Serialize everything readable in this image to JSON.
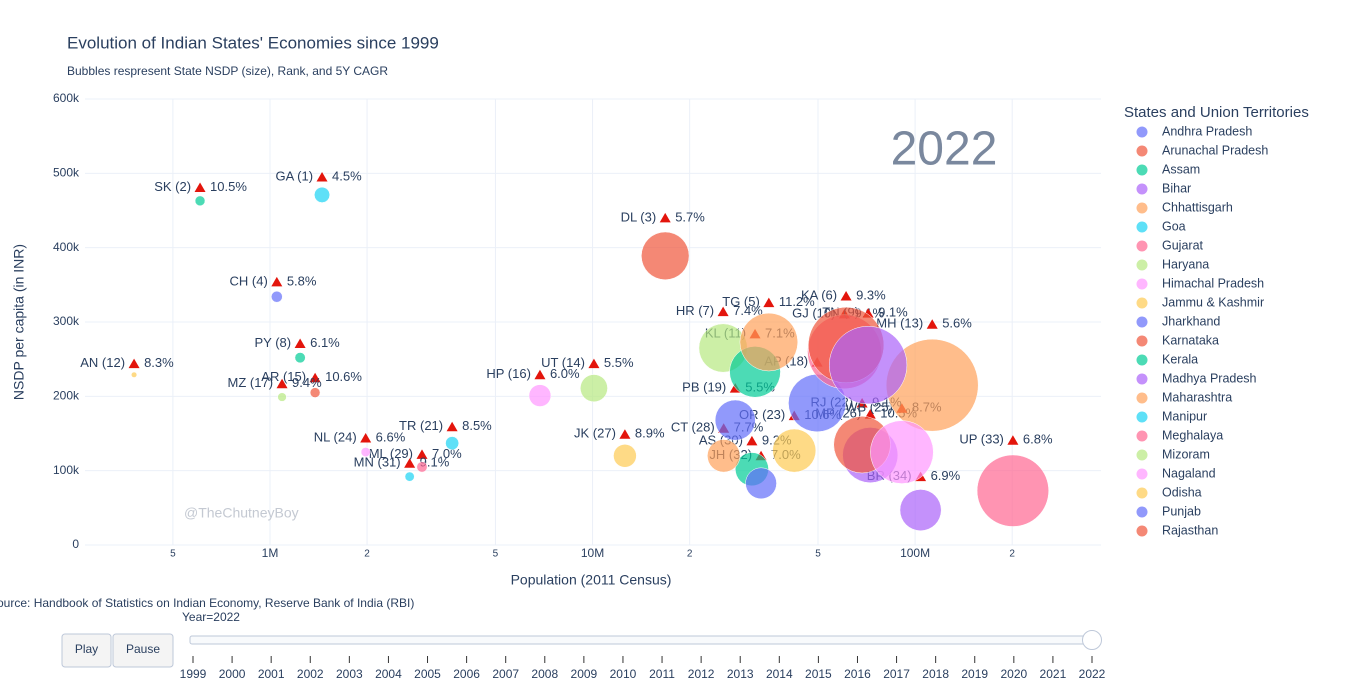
{
  "chart_data": {
    "type": "bubble",
    "title": "Evolution of Indian States' Economies since 1999",
    "subtitle": "Bubbles respresent State NSDP (size), Rank, and 5Y CAGR",
    "x_label": "Population (2011 Census)",
    "y_label": "NSDP per capita (in INR)",
    "legend_title": "States and Union Territories",
    "watermark": "@TheChutneyBoy",
    "source": "Source: Handbook of Statistics on Indian Economy, Reserve Bank of India (RBI)",
    "xscale": "log",
    "grid": true,
    "xlim": [
      267000,
      377000000
    ],
    "ylim": [
      0,
      600000
    ],
    "xticks": [
      {
        "value": 500000,
        "label": "5"
      },
      {
        "value": 1000000,
        "label": "1M"
      },
      {
        "value": 2000000,
        "label": "2"
      },
      {
        "value": 5000000,
        "label": "5"
      },
      {
        "value": 10000000,
        "label": "10M"
      },
      {
        "value": 20000000,
        "label": "2"
      },
      {
        "value": 50000000,
        "label": "5"
      },
      {
        "value": 100000000,
        "label": "100M"
      },
      {
        "value": 200000000,
        "label": "2"
      }
    ],
    "yticks": [
      0,
      {
        "value": 100000,
        "label": "100k"
      },
      {
        "value": 200000,
        "label": "200k"
      },
      {
        "value": 300000,
        "label": "300k"
      },
      {
        "value": 400000,
        "label": "400k"
      },
      {
        "value": 500000,
        "label": "500k"
      },
      {
        "value": 600000,
        "label": "600k"
      }
    ],
    "series": [
      {
        "name": "Andhra Pradesh",
        "color": "#636efa",
        "x": [
          49700000
        ],
        "y": [
          191000
        ],
        "size": [
          9490000000000
        ]
      },
      {
        "name": "Arunachal Pradesh",
        "color": "#EF553B",
        "x": [
          1380000
        ],
        "y": [
          205000
        ],
        "size": [
          283000000000
        ]
      },
      {
        "name": "Assam",
        "color": "#00cc96",
        "x": [
          31200000
        ],
        "y": [
          102000
        ],
        "size": [
          3180000000000
        ]
      },
      {
        "name": "Bihar",
        "color": "#ab63fa",
        "x": [
          104000000
        ],
        "y": [
          47000
        ],
        "size": [
          4890000000000
        ]
      },
      {
        "name": "Chhattisgarh",
        "color": "#FFA15A",
        "x": [
          25500000
        ],
        "y": [
          120000
        ],
        "size": [
          3060000000000
        ]
      },
      {
        "name": "Goa",
        "color": "#19d3f3",
        "x": [
          1450000
        ],
        "y": [
          471000
        ],
        "size": [
          683000000000
        ]
      },
      {
        "name": "Gujarat",
        "color": "#FF6692",
        "x": [
          60400000
        ],
        "y": [
          260000
        ],
        "size": [
          15700000000000
        ]
      },
      {
        "name": "Haryana",
        "color": "#B6E880",
        "x": [
          25400000
        ],
        "y": [
          265000
        ],
        "size": [
          6730000000000
        ]
      },
      {
        "name": "Himachal Pradesh",
        "color": "#FF97FF",
        "x": [
          6870000
        ],
        "y": [
          201000
        ],
        "size": [
          1380000000000
        ]
      },
      {
        "name": "Jammu & Kashmir",
        "color": "#FECB52",
        "x": [
          12600000
        ],
        "y": [
          120000
        ],
        "size": [
          1510000000000
        ]
      },
      {
        "name": "Jharkhand",
        "color": "#636efa",
        "x": [
          33300000
        ],
        "y": [
          83000
        ],
        "size": [
          2760000000000
        ]
      },
      {
        "name": "Karnataka",
        "color": "#EF553B",
        "x": [
          61100000
        ],
        "y": [
          269000
        ],
        "size": [
          16400000000000
        ]
      },
      {
        "name": "Kerala",
        "color": "#00cc96",
        "x": [
          31900000
        ],
        "y": [
          233000
        ],
        "size": [
          7430000000000
        ]
      },
      {
        "name": "Madhya Pradesh",
        "color": "#ab63fa",
        "x": [
          72600000
        ],
        "y": [
          121000
        ],
        "size": [
          8780000000000
        ]
      },
      {
        "name": "Maharashtra",
        "color": "#FFA15A",
        "x": [
          113000000
        ],
        "y": [
          215000
        ],
        "size": [
          24300000000000
        ]
      },
      {
        "name": "Manipur",
        "color": "#19d3f3",
        "x": [
          2710000
        ],
        "y": [
          92000
        ],
        "size": [
          249000000000
        ]
      },
      {
        "name": "Meghalaya",
        "color": "#FF6692",
        "x": [
          2960000
        ],
        "y": [
          105000
        ],
        "size": [
          311000000000
        ]
      },
      {
        "name": "Mizoram",
        "color": "#B6E880",
        "x": [
          1090000
        ],
        "y": [
          199000
        ],
        "size": [
          217000000000
        ]
      },
      {
        "name": "Nagaland",
        "color": "#FF97FF",
        "x": [
          1980000
        ],
        "y": [
          125000
        ],
        "size": [
          248000000000
        ]
      },
      {
        "name": "Odisha",
        "color": "#FECB52",
        "x": [
          42200000
        ],
        "y": [
          127000
        ],
        "size": [
          5360000000000
        ]
      },
      {
        "name": "Punjab",
        "color": "#636efa",
        "x": [
          27700000
        ],
        "y": [
          168000
        ],
        "size": [
          4650000000000
        ]
      },
      {
        "name": "Rajasthan",
        "color": "#EF553B",
        "x": [
          68500000
        ],
        "y": [
          135000
        ],
        "size": [
          9250000000000
        ]
      }
    ],
    "unnamed_series": [
      {
        "color": "#00cc96",
        "x": [
          607000
        ],
        "y": [
          463000
        ],
        "size": [
          281000000000
        ]
      },
      {
        "color": "#ab63fa",
        "x": [
          71500000
        ],
        "y": [
          242000
        ],
        "size": [
          17300000000000
        ]
      },
      {
        "color": "#FFA15A",
        "x": [
          35200000
        ],
        "y": [
          273000
        ],
        "size": [
          9610000000000
        ]
      },
      {
        "color": "#19d3f3",
        "x": [
          3670000
        ],
        "y": [
          137000
        ],
        "size": [
          503000000000
        ]
      },
      {
        "color": "#FF6692",
        "x": [
          201000000
        ],
        "y": [
          73000
        ],
        "size": [
          14700000000000
        ]
      },
      {
        "color": "#B6E880",
        "x": [
          10100000
        ],
        "y": [
          211000
        ],
        "size": [
          2130000000000
        ]
      },
      {
        "color": "#FF97FF",
        "x": [
          91000000
        ],
        "y": [
          125000
        ],
        "size": [
          11400000000000
        ]
      },
      {
        "color": "#FECB52",
        "x": [
          379000
        ],
        "y": [
          229000
        ],
        "size": [
          86800000000
        ]
      },
      {
        "color": "#636efa",
        "x": [
          1050000
        ],
        "y": [
          334000
        ],
        "size": [
          351000000000
        ]
      },
      {
        "color": "#EF553B",
        "x": [
          16800000
        ],
        "y": [
          389000
        ],
        "size": [
          6540000000000
        ]
      },
      {
        "color": "#00cc96",
        "x": [
          1240000
        ],
        "y": [
          252000
        ],
        "size": [
          312000000000
        ]
      }
    ],
    "annotations": [
      {
        "label": "SK (2)",
        "change": "10.5%",
        "x": 607000,
        "y": 481000
      },
      {
        "label": "GA (1)",
        "change": "4.5%",
        "x": 1450000,
        "y": 495000
      },
      {
        "label": "DL (3)",
        "change": "5.7%",
        "x": 16800000,
        "y": 440000
      },
      {
        "label": "CH (4)",
        "change": "5.8%",
        "x": 1050000,
        "y": 354000
      },
      {
        "label": "PY (8)",
        "change": "6.1%",
        "x": 1240000,
        "y": 271000
      },
      {
        "label": "AN (12)",
        "change": "8.3%",
        "x": 379000,
        "y": 244000
      },
      {
        "label": "AR (15)",
        "change": "10.6%",
        "x": 1380000,
        "y": 225000
      },
      {
        "label": "MZ (17)",
        "change": "9.4%",
        "x": 1090000,
        "y": 217000
      },
      {
        "label": "HP (16)",
        "change": "6.0%",
        "x": 6870000,
        "y": 229000
      },
      {
        "label": "UT (14)",
        "change": "5.5%",
        "x": 10100000,
        "y": 244000
      },
      {
        "label": "NL (24)",
        "change": "6.6%",
        "x": 1980000,
        "y": 144000
      },
      {
        "label": "TR (21)",
        "change": "8.5%",
        "x": 3670000,
        "y": 159000
      },
      {
        "label": "ML (29)",
        "change": "7.0%",
        "x": 2960000,
        "y": 122000
      },
      {
        "label": "MN (31)",
        "change": "9.1%",
        "x": 2710000,
        "y": 110000
      },
      {
        "label": "JK (27)",
        "change": "8.9%",
        "x": 12600000,
        "y": 149000
      },
      {
        "label": "HR (7)",
        "change": "7.4%",
        "x": 25400000,
        "y": 314000
      },
      {
        "label": "TG (5)",
        "change": "11.2%",
        "x": 35200000,
        "y": 326000
      },
      {
        "label": "KL (11)",
        "change": "7.1%",
        "x": 31900000,
        "y": 284000
      },
      {
        "label": "KA (6)",
        "change": "9.3%",
        "x": 61100000,
        "y": 335000
      },
      {
        "label": "GJ (10)",
        "change": "9.1%",
        "x": 60400000,
        "y": 311000
      },
      {
        "label": "TN (9)",
        "change": "9.1%",
        "x": 71500000,
        "y": 312000
      },
      {
        "label": "MH (13)",
        "change": "5.6%",
        "x": 113000000,
        "y": 297000
      },
      {
        "label": "PB (19)",
        "change": "5.5%",
        "x": 27700000,
        "y": 211000
      },
      {
        "label": "CT (28)",
        "change": "7.7%",
        "x": 25500000,
        "y": 157000
      },
      {
        "label": "AS (30)",
        "change": "9.2%",
        "x": 31200000,
        "y": 140000
      },
      {
        "label": "JH (32)",
        "change": "7.0%",
        "x": 33300000,
        "y": 120000
      },
      {
        "label": "OR (23)",
        "change": "10.6%",
        "x": 42200000,
        "y": 174000
      },
      {
        "label": "AP (18)",
        "x": 49700000,
        "y": 246000
      },
      {
        "label": "RJ (22)",
        "change": "9.1%",
        "x": 68500000,
        "y": 191000
      },
      {
        "label": "MP (26)",
        "change": "10.5%",
        "x": 72600000,
        "y": 176000
      },
      {
        "label": "WB (25)",
        "change": "8.7%",
        "x": 91000000,
        "y": 184000
      },
      {
        "label": "BR (34)",
        "change": "6.9%",
        "x": 104000000,
        "y": 92000
      },
      {
        "label": "UP (33)",
        "change": "6.8%",
        "x": 201000000,
        "y": 141000
      }
    ],
    "year": 2022,
    "slider": {
      "prefix": "Year=",
      "steps": [
        1999,
        2000,
        2001,
        2002,
        2003,
        2004,
        2005,
        2006,
        2007,
        2008,
        2009,
        2010,
        2011,
        2012,
        2013,
        2014,
        2015,
        2016,
        2017,
        2018,
        2019,
        2020,
        2021,
        2022
      ]
    },
    "buttons": [
      "Play",
      "Pause"
    ]
  }
}
